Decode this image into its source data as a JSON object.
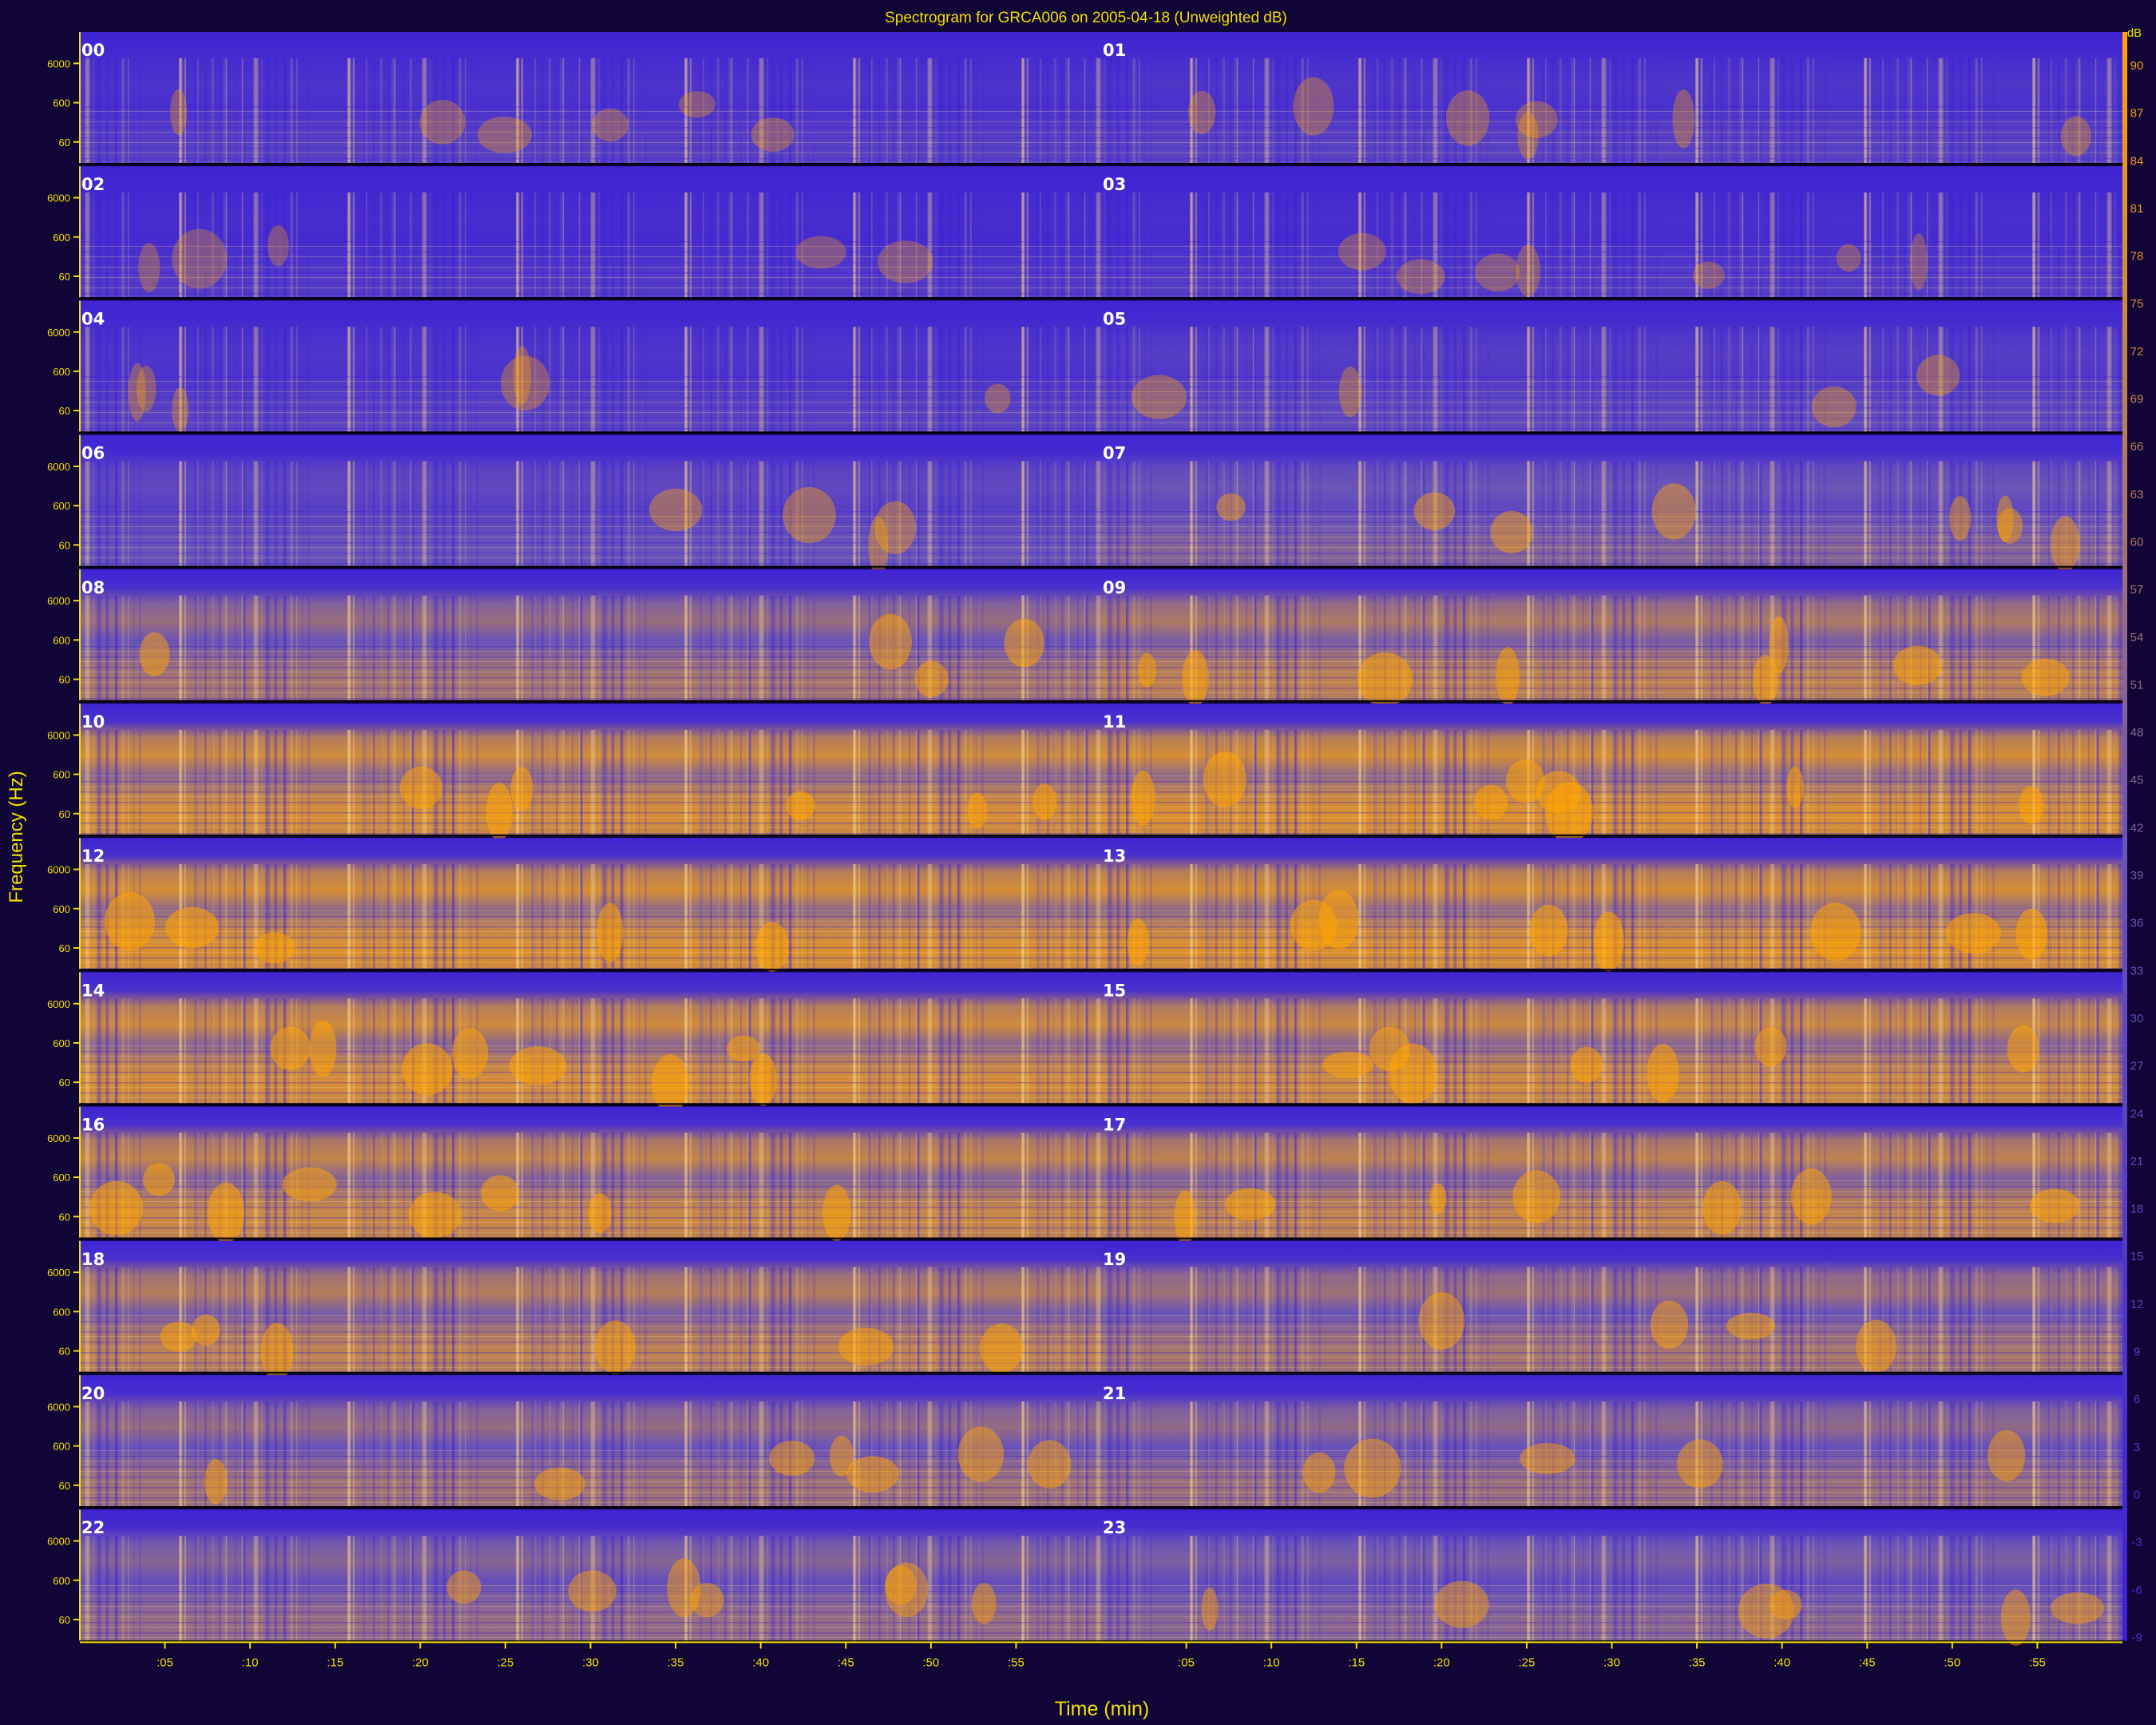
{
  "chart_data": {
    "type": "heatmap",
    "title": "Spectrogram for GRCA006 on 2005-04-18 (Unweighted dB)",
    "xlabel": "Time (min)",
    "ylabel": "Frequency (Hz)",
    "colorbar_unit": "dB",
    "xlim": [
      0,
      60
    ],
    "x_ticks": [
      ":05",
      ":10",
      ":15",
      ":20",
      ":25",
      ":30",
      ":35",
      ":40",
      ":45",
      ":50",
      ":55"
    ],
    "y_ticks": [
      "6000",
      "600",
      "60"
    ],
    "panels": [
      {
        "left": "00",
        "right": "01",
        "level_left": 0.2,
        "level_right": 0.22,
        "band": 0
      },
      {
        "left": "02",
        "right": "03",
        "level_left": 0.14,
        "level_right": 0.16,
        "band": 0
      },
      {
        "left": "04",
        "right": "05",
        "level_left": 0.22,
        "level_right": 0.3,
        "band": 0
      },
      {
        "left": "06",
        "right": "07",
        "level_left": 0.38,
        "level_right": 0.5,
        "band": 0.3
      },
      {
        "left": "08",
        "right": "09",
        "level_left": 0.62,
        "level_right": 0.7,
        "band": 0.7
      },
      {
        "left": "10",
        "right": "11",
        "level_left": 0.78,
        "level_right": 0.8,
        "band": 1
      },
      {
        "left": "12",
        "right": "13",
        "level_left": 0.8,
        "level_right": 0.8,
        "band": 1
      },
      {
        "left": "14",
        "right": "15",
        "level_left": 0.78,
        "level_right": 0.76,
        "band": 1
      },
      {
        "left": "16",
        "right": "17",
        "level_left": 0.74,
        "level_right": 0.72,
        "band": 1
      },
      {
        "left": "18",
        "right": "19",
        "level_left": 0.7,
        "level_right": 0.62,
        "band": 0.9
      },
      {
        "left": "20",
        "right": "21",
        "level_left": 0.6,
        "level_right": 0.58,
        "band": 0.8
      },
      {
        "left": "22",
        "right": "23",
        "level_left": 0.56,
        "level_right": 0.52,
        "band": 0.7
      }
    ],
    "colorbar": {
      "unit_label": "dB",
      "min": -9,
      "max": 90,
      "ticks": [
        90,
        87,
        84,
        81,
        78,
        75,
        72,
        69,
        66,
        63,
        60,
        57,
        54,
        51,
        48,
        45,
        42,
        39,
        36,
        33,
        30,
        27,
        24,
        21,
        18,
        15,
        12,
        9,
        6,
        3,
        0,
        -3,
        -6,
        -9
      ]
    },
    "colors": {
      "background": "#110436",
      "low": "#3b1fd6",
      "mid": "#6a55b8",
      "high": "#ffa400",
      "peak": "#ffd98a",
      "axis": "#f0e000",
      "label_text": "#ffffff"
    },
    "grid": false
  }
}
